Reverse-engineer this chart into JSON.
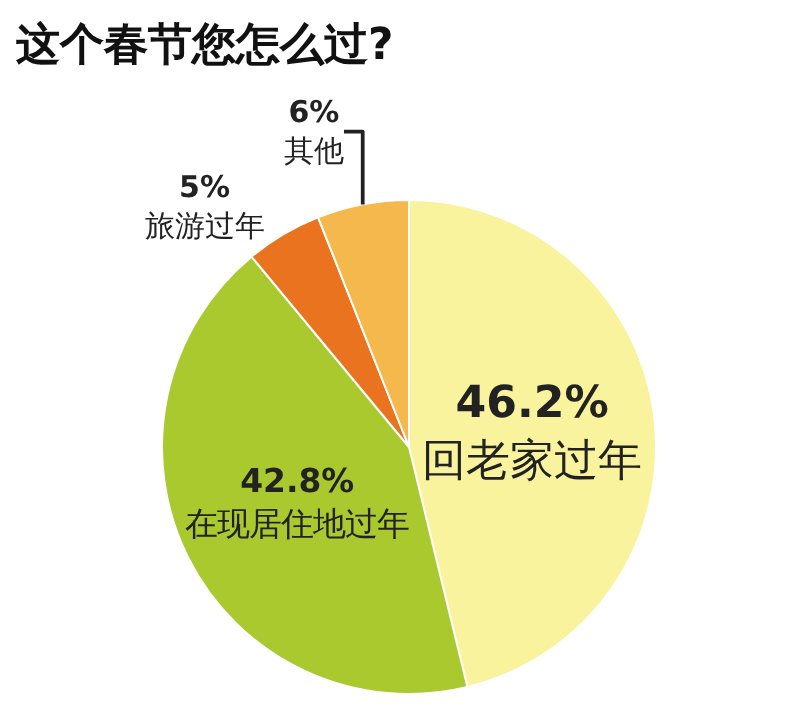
{
  "chart_data": {
    "type": "pie",
    "title": "这个春节您怎么过?",
    "categories": [
      "回老家过年",
      "在现居住地过年",
      "旅游过年",
      "其他"
    ],
    "values": [
      46.2,
      42.8,
      5,
      6
    ],
    "value_labels": [
      "46.2%",
      "42.8%",
      "5%",
      "6%"
    ],
    "colors": [
      "#f8f39c",
      "#a9c92e",
      "#e9731f",
      "#f5b84c"
    ],
    "legend": false
  }
}
